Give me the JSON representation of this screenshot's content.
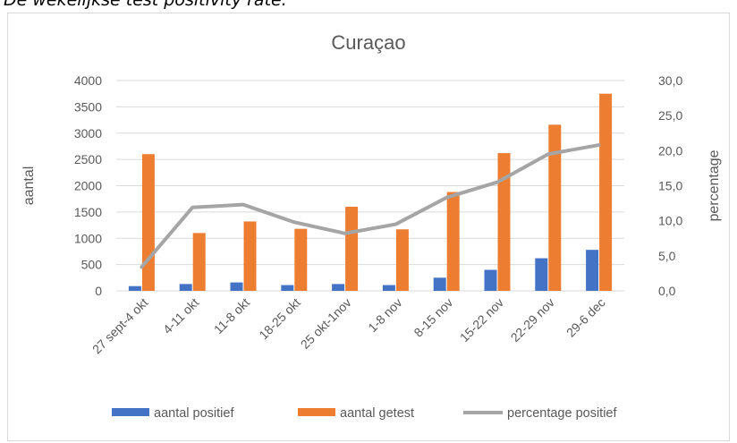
{
  "caption": "De wekelijkse test positivity rate:",
  "chart_data": {
    "type": "bar",
    "title": "Curaçao",
    "categories": [
      "27 sept-4 okt",
      "4-11 okt",
      "11-8 okt",
      "18-25 okt",
      "25 okt-1nov",
      "1-8 nov",
      "8-15 nov",
      "15-22 nov",
      "22-29 nov",
      "29-6 dec"
    ],
    "series": [
      {
        "name": "aantal positief",
        "type": "bar",
        "axis": "left",
        "color": "#4472c4",
        "values": [
          90,
          130,
          160,
          110,
          130,
          110,
          250,
          400,
          620,
          780
        ]
      },
      {
        "name": "aantal getest",
        "type": "bar",
        "axis": "left",
        "color": "#ed7d31",
        "values": [
          2600,
          1100,
          1320,
          1180,
          1600,
          1170,
          1880,
          2620,
          3160,
          3750
        ]
      },
      {
        "name": "percentage positief",
        "type": "line",
        "axis": "right",
        "color": "#a5a5a5",
        "values": [
          3.4,
          11.9,
          12.3,
          9.8,
          8.2,
          9.5,
          13.3,
          15.5,
          19.5,
          20.8
        ]
      }
    ],
    "ylabel": "aantal",
    "ylim": [
      0,
      4000
    ],
    "yticks": [
      "0",
      "500",
      "1000",
      "1500",
      "2000",
      "2500",
      "3000",
      "3500",
      "4000"
    ],
    "y2label": "percentage",
    "y2lim": [
      0,
      30
    ],
    "y2ticks": [
      "0,0",
      "5,0",
      "10,0",
      "15,0",
      "20,0",
      "25,0",
      "30,0"
    ],
    "grid": true,
    "legend": "bottom"
  }
}
